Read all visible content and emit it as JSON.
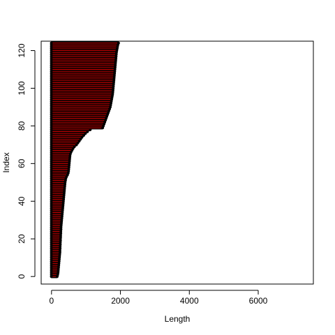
{
  "chart_data": {
    "type": "bar",
    "orientation": "horizontal",
    "title": "",
    "xlabel": "Length",
    "ylabel": "Index",
    "xlim": [
      -300,
      7600
    ],
    "ylim": [
      -4,
      125
    ],
    "xticks": [
      0,
      2000,
      4000,
      6000
    ],
    "xtick_labels": [
      "0",
      "2000",
      "4000",
      "6000"
    ],
    "yticks": [
      0,
      20,
      40,
      60,
      80,
      100,
      120
    ],
    "ytick_labels": [
      "0",
      "20",
      "40",
      "60",
      "80",
      "100",
      "120"
    ],
    "grid": false,
    "legend": "none",
    "segment_color": "#000000",
    "highlight_color": "#cc0000",
    "lengths": [
      160,
      175,
      185,
      190,
      195,
      200,
      205,
      210,
      215,
      220,
      225,
      230,
      235,
      240,
      240,
      245,
      245,
      250,
      250,
      255,
      255,
      260,
      260,
      265,
      265,
      270,
      270,
      275,
      280,
      285,
      290,
      295,
      300,
      305,
      310,
      315,
      320,
      325,
      330,
      335,
      340,
      345,
      350,
      355,
      360,
      365,
      370,
      375,
      380,
      385,
      390,
      400,
      410,
      430,
      460,
      480,
      490,
      495,
      500,
      505,
      510,
      515,
      520,
      525,
      530,
      540,
      560,
      590,
      620,
      660,
      720,
      760,
      800,
      840,
      880,
      930,
      980,
      1040,
      1120,
      1480,
      1500,
      1520,
      1540,
      1560,
      1580,
      1600,
      1620,
      1640,
      1660,
      1680,
      1700,
      1710,
      1720,
      1730,
      1740,
      1750,
      1760,
      1770,
      1775,
      1780,
      1785,
      1790,
      1795,
      1800,
      1805,
      1810,
      1815,
      1820,
      1825,
      1830,
      1835,
      1840,
      1845,
      1850,
      1855,
      1860,
      1865,
      1870,
      1875,
      1880,
      1890,
      1900,
      1910,
      1920,
      1940
    ]
  }
}
